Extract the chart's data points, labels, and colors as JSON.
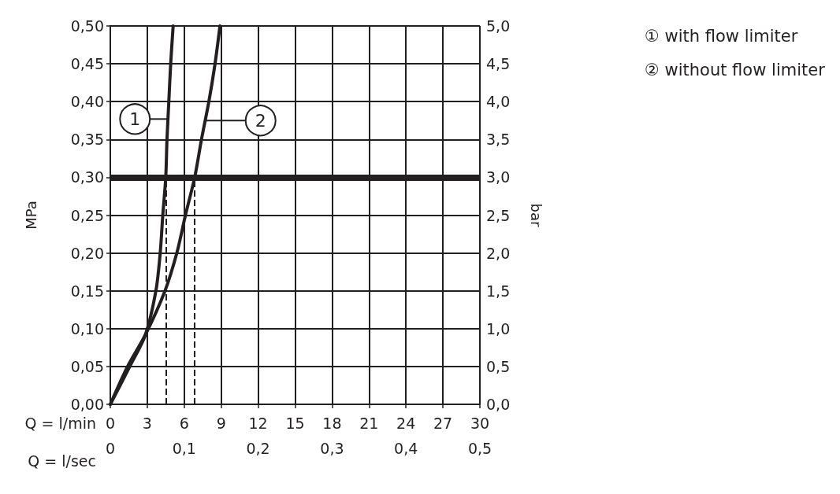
{
  "chart_data": {
    "type": "line",
    "xlabel": "Q = l/min",
    "x2label": "Q = l/sec",
    "ylabel": "MPa",
    "y2label": "bar",
    "xlim": [
      0,
      30
    ],
    "xticks": [
      0,
      3,
      6,
      9,
      12,
      15,
      18,
      21,
      24,
      27,
      30
    ],
    "x2lim": [
      0,
      0.5
    ],
    "x2ticks": [
      {
        "value": 0,
        "label": "0"
      },
      {
        "value": 0.1,
        "label": "0,1"
      },
      {
        "value": 0.2,
        "label": "0,2"
      },
      {
        "value": 0.3,
        "label": "0,3"
      },
      {
        "value": 0.4,
        "label": "0,4"
      },
      {
        "value": 0.5,
        "label": "0,5"
      }
    ],
    "ylim": [
      0,
      0.5
    ],
    "yticks": [
      {
        "value": 0,
        "label": "0,00"
      },
      {
        "value": 0.05,
        "label": "0,05"
      },
      {
        "value": 0.1,
        "label": "0,10"
      },
      {
        "value": 0.15,
        "label": "0,15"
      },
      {
        "value": 0.2,
        "label": "0,20"
      },
      {
        "value": 0.25,
        "label": "0,25"
      },
      {
        "value": 0.3,
        "label": "0,30"
      },
      {
        "value": 0.35,
        "label": "0,35"
      },
      {
        "value": 0.4,
        "label": "0,40"
      },
      {
        "value": 0.45,
        "label": "0,45"
      },
      {
        "value": 0.5,
        "label": "0,50"
      }
    ],
    "y2lim": [
      0,
      5
    ],
    "y2ticks": [
      {
        "value": 0,
        "label": "0,0"
      },
      {
        "value": 0.5,
        "label": "0,5"
      },
      {
        "value": 1,
        "label": "1,0"
      },
      {
        "value": 1.5,
        "label": "1,5"
      },
      {
        "value": 2,
        "label": "2,0"
      },
      {
        "value": 2.5,
        "label": "2,5"
      },
      {
        "value": 3,
        "label": "3,0"
      },
      {
        "value": 3.5,
        "label": "3,5"
      },
      {
        "value": 4,
        "label": "4,0"
      },
      {
        "value": 4.5,
        "label": "4,5"
      },
      {
        "value": 5,
        "label": "5,0"
      }
    ],
    "grid": true,
    "legend": "top right",
    "marker": "none",
    "line_style": "solid",
    "series": [
      {
        "name": "① with flow limiter",
        "color": "#231f20",
        "x": [
          0,
          1.58,
          2.85,
          3.7,
          4.05,
          4.26,
          4.5,
          4.6,
          4.75,
          4.9,
          5.1
        ],
        "values": [
          0,
          0.05,
          0.092,
          0.15,
          0.2,
          0.25,
          0.3,
          0.35,
          0.4,
          0.45,
          0.5
        ]
      },
      {
        "name": "② without flow limiter",
        "color": "#231f20",
        "x": [
          0,
          1.4,
          2.85,
          4.44,
          5.4,
          6.1,
          6.85,
          7.4,
          8.0,
          8.5,
          8.9
        ],
        "values": [
          0,
          0.05,
          0.092,
          0.15,
          0.2,
          0.25,
          0.3,
          0.35,
          0.4,
          0.45,
          0.5
        ]
      }
    ],
    "ref_lines": [
      {
        "axis": "y",
        "value": 0.3,
        "color": "#231f20",
        "line_style": "solid"
      },
      {
        "axis": "x",
        "value": 4.5,
        "color": "#231f20",
        "line_style": "dashed"
      },
      {
        "axis": "x",
        "value": 6.85,
        "color": "#231f20",
        "line_style": "dashed"
      }
    ],
    "annotations": [
      {
        "text": "1",
        "x": 2.0,
        "y": 0.377
      },
      {
        "text": "2",
        "x": 12.2,
        "y": 0.375
      }
    ]
  }
}
